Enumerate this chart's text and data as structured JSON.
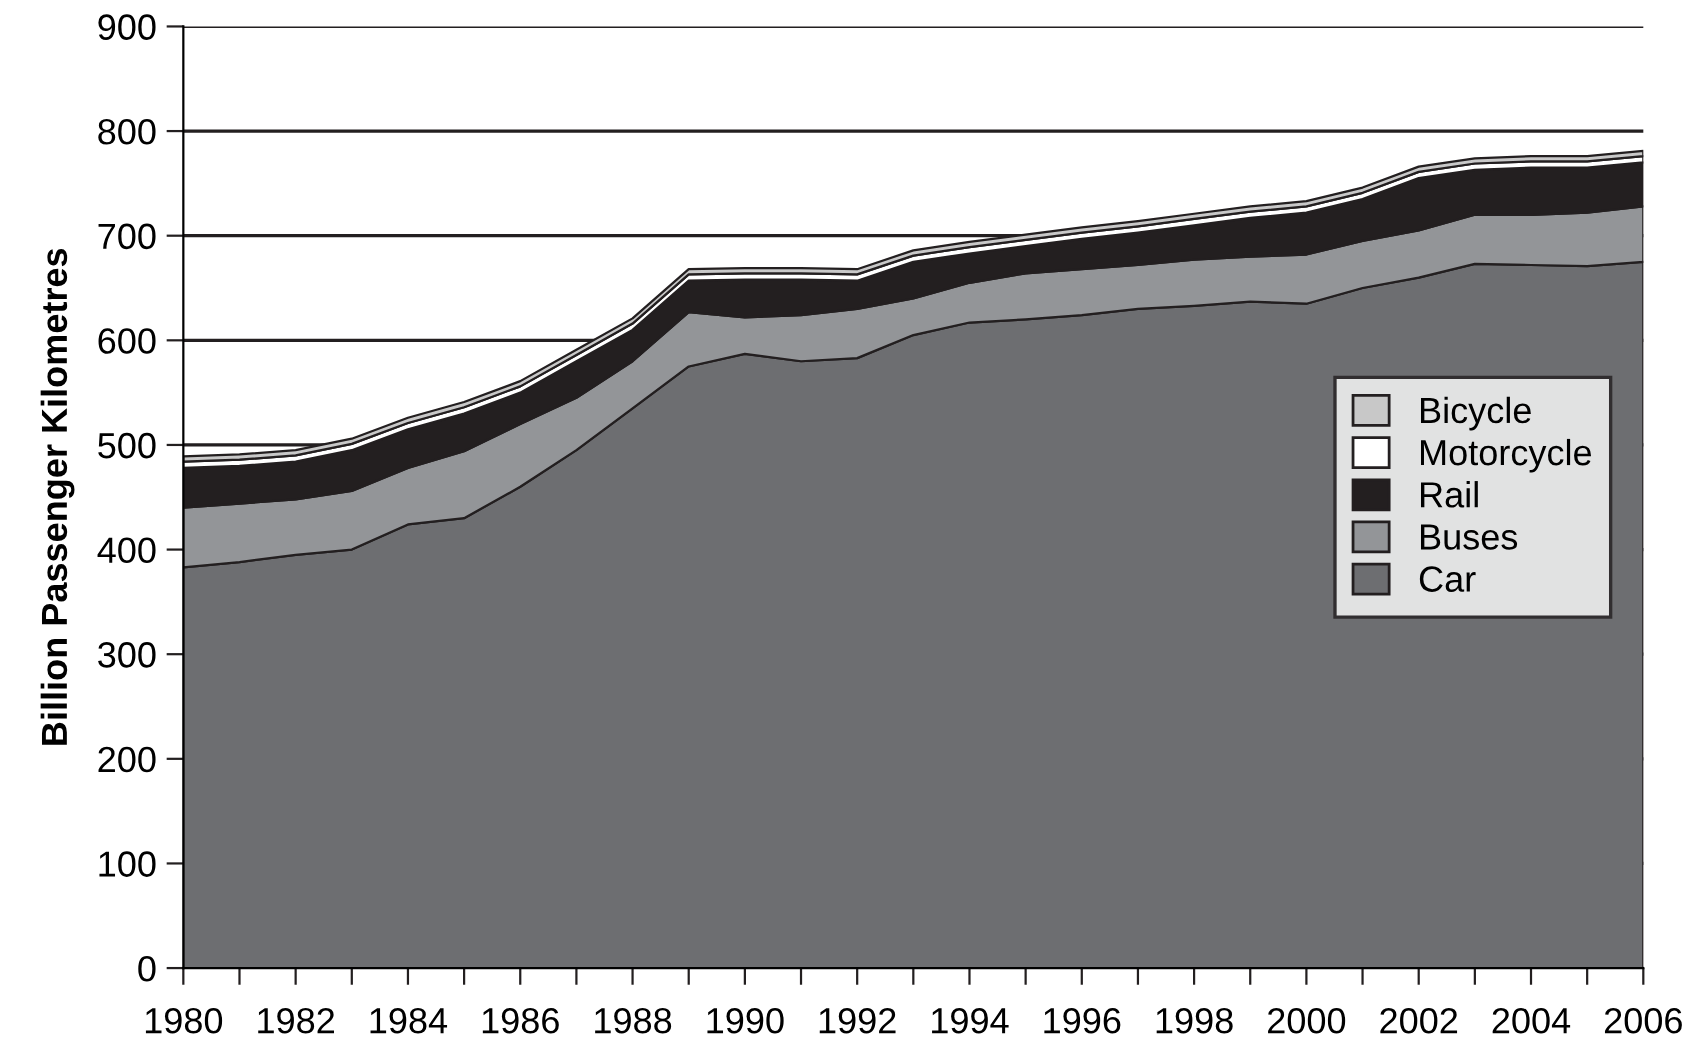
{
  "chart_data": {
    "type": "area",
    "stacked": true,
    "ylabel": "Billion Passenger Kilometres",
    "x": [
      1980,
      1981,
      1982,
      1983,
      1984,
      1985,
      1986,
      1987,
      1988,
      1989,
      1990,
      1991,
      1992,
      1993,
      1994,
      1995,
      1996,
      1997,
      1998,
      1999,
      2000,
      2001,
      2002,
      2003,
      2004,
      2005,
      2006
    ],
    "series": [
      {
        "name": "Car",
        "color": "#6d6e71",
        "values": [
          383,
          388,
          395,
          400,
          424,
          430,
          460,
          495,
          535,
          575,
          587,
          580,
          583,
          605,
          617,
          620,
          624,
          630,
          633,
          637,
          635,
          650,
          660,
          673,
          672,
          671,
          675
        ]
      },
      {
        "name": "Buses",
        "color": "#939598",
        "values": [
          57,
          56,
          53,
          56,
          54,
          64,
          60,
          50,
          45,
          52,
          35,
          44,
          47,
          35,
          38,
          44,
          44,
          42,
          44,
          43,
          47,
          45,
          45,
          47,
          48,
          51,
          53
        ]
      },
      {
        "name": "Rail",
        "color": "#231f20",
        "values": [
          38,
          36,
          36,
          39,
          37,
          36,
          30,
          35,
          30,
          30,
          36,
          34,
          27,
          35,
          28,
          26,
          29,
          31,
          33,
          37,
          40,
          40,
          50,
          43,
          45,
          43,
          42
        ]
      },
      {
        "name": "Motorcycle",
        "color": "#ffffff",
        "values": [
          6,
          6,
          6,
          6,
          6,
          6,
          6,
          6,
          6,
          6,
          6,
          6,
          6,
          6,
          6,
          6,
          6,
          6,
          6,
          6,
          6,
          6,
          6,
          6,
          6,
          6,
          6
        ]
      },
      {
        "name": "Bicycle",
        "color": "#c8c8c8",
        "values": [
          5,
          5,
          5,
          5,
          5,
          5,
          5,
          5,
          5,
          5,
          5,
          5,
          5,
          5,
          5,
          5,
          5,
          5,
          5,
          5,
          5,
          5,
          5,
          5,
          5,
          5,
          5
        ]
      }
    ],
    "xlim": [
      1980,
      2006
    ],
    "xticks": [
      1980,
      {
        "value": 1981,
        "label": null
      },
      1982,
      {
        "value": 1983,
        "label": null
      },
      1984,
      {
        "value": 1985,
        "label": null
      },
      1986,
      {
        "value": 1987,
        "label": null
      },
      1988,
      {
        "value": 1989,
        "label": null
      },
      1990,
      {
        "value": 1991,
        "label": null
      },
      1992,
      {
        "value": 1993,
        "label": null
      },
      1994,
      {
        "value": 1995,
        "label": null
      },
      1996,
      {
        "value": 1997,
        "label": null
      },
      1998,
      {
        "value": 1999,
        "label": null
      },
      2000,
      {
        "value": 2001,
        "label": null
      },
      2002,
      {
        "value": 2003,
        "label": null
      },
      2004,
      {
        "value": 2005,
        "label": null
      },
      2006
    ],
    "ylim": [
      0,
      900
    ],
    "yticks": [
      0,
      100,
      200,
      300,
      400,
      500,
      600,
      700,
      800,
      900
    ],
    "grid": "y",
    "legend": "right"
  }
}
